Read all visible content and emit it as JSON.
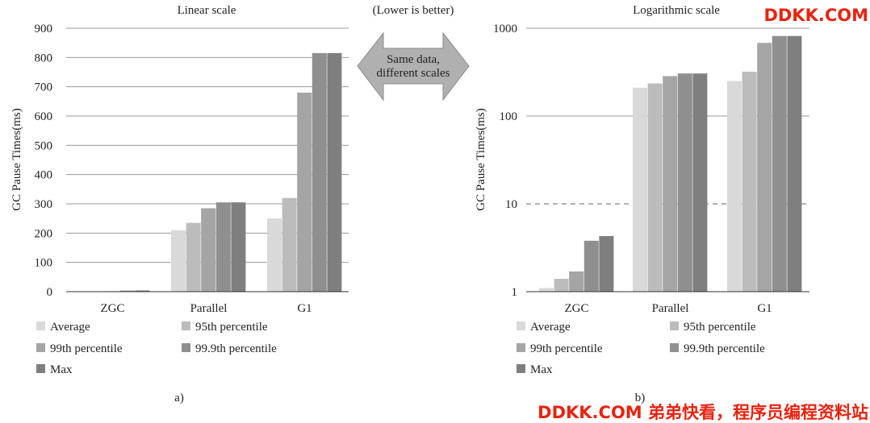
{
  "center_note": {
    "lower_is_better": "(Lower is better)",
    "arrow_line1": "Same data,",
    "arrow_line2": "different scales"
  },
  "watermark": {
    "top": "DDKK.COM",
    "bottom": "DDKK.COM 弟弟快看，程序员编程资料站"
  },
  "colors": {
    "Average": "#d9d9d9",
    "95th percentile": "#bcbcbc",
    "99th percentile": "#a5a5a5",
    "99.9th percentile": "#8f8f8f",
    "Max": "#7f7f7f",
    "watermark": "#e8230f"
  },
  "chart_data": [
    {
      "type": "bar",
      "title": "Linear scale",
      "panel_label": "a)",
      "ylabel": "GC Pause Times(ms)",
      "xlabel": "",
      "scale": "linear",
      "ylim": [
        0,
        900
      ],
      "yticks": [
        "0",
        "100",
        "200",
        "300",
        "400",
        "500",
        "600",
        "700",
        "800",
        "900"
      ],
      "grid": "horizontal",
      "legend_position": "bottom",
      "categories": [
        "ZGC",
        "Parallel",
        "G1"
      ],
      "series": [
        {
          "name": "Average",
          "values": [
            1.1,
            210,
            250
          ]
        },
        {
          "name": "95th percentile",
          "values": [
            1.4,
            235,
            320
          ]
        },
        {
          "name": "99th percentile",
          "values": [
            1.7,
            285,
            680
          ]
        },
        {
          "name": "99.9th percentile",
          "values": [
            3.8,
            305,
            815
          ]
        },
        {
          "name": "Max",
          "values": [
            4.3,
            305,
            815
          ]
        }
      ]
    },
    {
      "type": "bar",
      "title": "Logarithmic scale",
      "panel_label": "b)",
      "ylabel": "GC Pause Times(ms)",
      "xlabel": "",
      "scale": "log",
      "ylim": [
        1,
        1000
      ],
      "yticks": [
        "1",
        "10",
        "100",
        "1000"
      ],
      "grid": "horizontal (dashed at 10)",
      "legend_position": "bottom",
      "categories": [
        "ZGC",
        "Parallel",
        "G1"
      ],
      "series": [
        {
          "name": "Average",
          "values": [
            1.1,
            210,
            250
          ]
        },
        {
          "name": "95th percentile",
          "values": [
            1.4,
            235,
            320
          ]
        },
        {
          "name": "99th percentile",
          "values": [
            1.7,
            285,
            680
          ]
        },
        {
          "name": "99.9th percentile",
          "values": [
            3.8,
            305,
            815
          ]
        },
        {
          "name": "Max",
          "values": [
            4.3,
            305,
            815
          ]
        }
      ]
    }
  ]
}
